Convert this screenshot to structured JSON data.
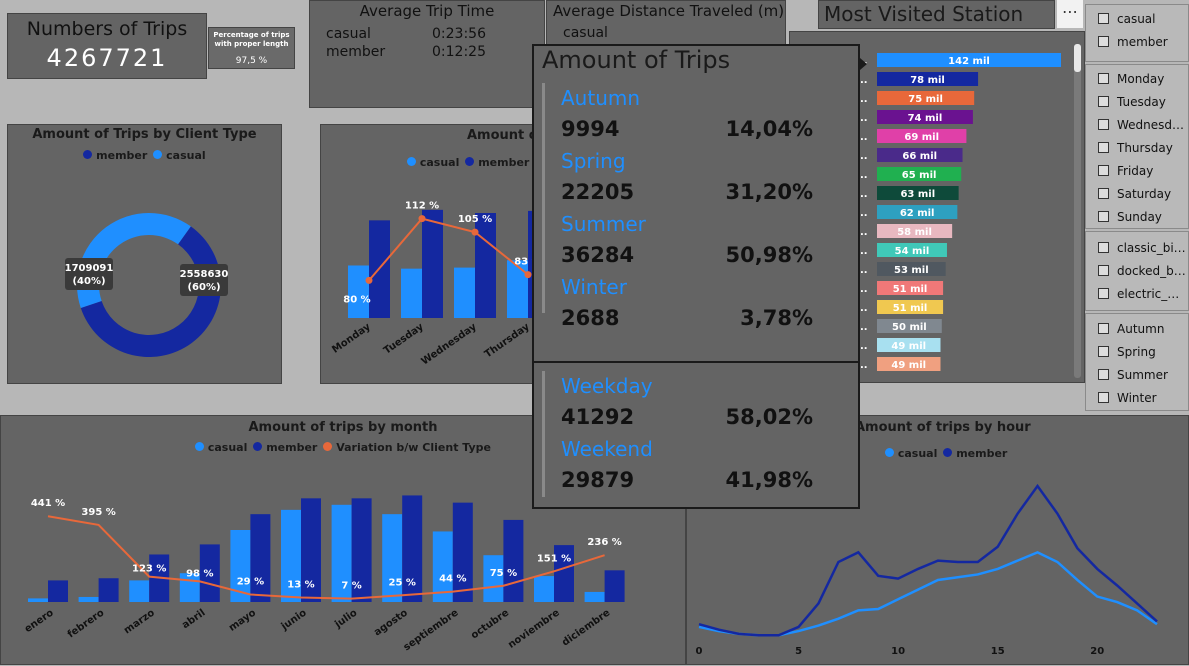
{
  "kpis": {
    "trips_title": "Numbers of Trips",
    "trips_value": "4267721",
    "pct_title": "Percentage of trips with proper length",
    "pct_value": "97,5 %",
    "avg_time_title": "Average Trip Time",
    "avg_time_rows": [
      {
        "label": "casual",
        "value": "0:23:56"
      },
      {
        "label": "member",
        "value": "0:12:25"
      }
    ],
    "avg_dist_title": "Average Distance Traveled (m)",
    "avg_dist_first_label": "casual"
  },
  "client_type": {
    "title": "Amount of Trips by Client Type",
    "legend": [
      {
        "name": "member",
        "color": "#1428a0"
      },
      {
        "name": "casual",
        "color": "#1f8fff"
      }
    ],
    "chart_data": {
      "type": "pie",
      "slices": [
        {
          "name": "member",
          "value": 2558630,
          "label": "2558630",
          "pct": "(60%)"
        },
        {
          "name": "casual",
          "value": 1709091,
          "label": "1709091",
          "pct": "(40%)"
        }
      ]
    }
  },
  "weekday_chart": {
    "title": "Amount o",
    "legend": [
      {
        "name": "casual",
        "color": "#1f8fff"
      },
      {
        "name": "member",
        "color": "#1428a0"
      }
    ],
    "chart_data": {
      "type": "bar",
      "categories": [
        "Monday",
        "Tuesday",
        "Wednesday",
        "Thursday"
      ],
      "series": [
        {
          "name": "casual",
          "values": [
            50,
            47,
            48,
            55
          ]
        },
        {
          "name": "member",
          "values": [
            93,
            103,
            100,
            102
          ]
        }
      ],
      "line": {
        "values": [
          80,
          112,
          105,
          83
        ],
        "labels": [
          "80 %",
          "112 %",
          "105 %",
          "83 %"
        ]
      }
    }
  },
  "station": {
    "title": "Most Visited Station",
    "chart_data": {
      "type": "bar",
      "values": [
        142,
        78,
        75,
        74,
        69,
        66,
        65,
        63,
        62,
        58,
        54,
        53,
        51,
        51,
        50,
        49,
        49
      ],
      "labels": [
        "142 mil",
        "78 mil",
        "75 mil",
        "74 mil",
        "69 mil",
        "66 mil",
        "65 mil",
        "63 mil",
        "62 mil",
        "58 mil",
        "54 mil",
        "53 mil",
        "51 mil",
        "51 mil",
        "50 mil",
        "49 mil",
        "49 mil"
      ],
      "colors": [
        "#1f8fff",
        "#1428a0",
        "#e8683a",
        "#6a1290",
        "#e040a8",
        "#4a2a8a",
        "#20b050",
        "#0e4a3a",
        "#2ea0c0",
        "#e8b8c0",
        "#40c8b8",
        "#505860",
        "#f07878",
        "#f0c850",
        "#808890",
        "#a8e0f0",
        "#f0a080"
      ]
    }
  },
  "slicers": {
    "client": [
      "casual",
      "member"
    ],
    "days": [
      "Monday",
      "Tuesday",
      "Wednesd…",
      "Thursday",
      "Friday",
      "Saturday",
      "Sunday"
    ],
    "bike": [
      "classic_bi…",
      "docked_b…",
      "electric_…"
    ],
    "season": [
      "Autumn",
      "Spring",
      "Summer",
      "Winter"
    ]
  },
  "tooltip": {
    "title": "Amount of Trips",
    "seasons": [
      {
        "name": "Autumn",
        "count": "9994",
        "pct": "14,04%"
      },
      {
        "name": "Spring",
        "count": "22205",
        "pct": "31,20%"
      },
      {
        "name": "Summer",
        "count": "36284",
        "pct": "50,98%"
      },
      {
        "name": "Winter",
        "count": "2688",
        "pct": "3,78%"
      }
    ],
    "daytypes": [
      {
        "name": "Weekday",
        "count": "41292",
        "pct": "58,02%"
      },
      {
        "name": "Weekend",
        "count": "29879",
        "pct": "41,98%"
      }
    ]
  },
  "month_chart": {
    "title": "Amount of trips by month",
    "legend": [
      {
        "name": "casual",
        "color": "#1f8fff"
      },
      {
        "name": "member",
        "color": "#1428a0"
      },
      {
        "name": "Variation b/w Client Type",
        "color": "#e8683a"
      }
    ],
    "chart_data": {
      "type": "bar",
      "categories": [
        "enero",
        "febrero",
        "marzo",
        "abril",
        "mayo",
        "junio",
        "julio",
        "agosto",
        "septiembre",
        "octubre",
        "noviembre",
        "diciembre"
      ],
      "series": [
        {
          "name": "casual",
          "values": [
            5,
            7,
            30,
            40,
            100,
            128,
            135,
            122,
            98,
            65,
            36,
            14
          ]
        },
        {
          "name": "member",
          "values": [
            30,
            33,
            66,
            80,
            122,
            144,
            144,
            148,
            138,
            114,
            79,
            44
          ]
        }
      ],
      "line": {
        "values": [
          441,
          395,
          123,
          98,
          29,
          13,
          7,
          25,
          44,
          75,
          151,
          236
        ],
        "labels": [
          "441 %",
          "395 %",
          "123 %",
          "98 %",
          "29 %",
          "13 %",
          "7 %",
          "25 %",
          "44 %",
          "75 %",
          "151 %",
          "236 %"
        ]
      }
    }
  },
  "hour_chart": {
    "title": "Amount of trips by hour",
    "legend": [
      {
        "name": "casual",
        "color": "#1f8fff"
      },
      {
        "name": "member",
        "color": "#1428a0"
      }
    ],
    "chart_data": {
      "type": "line",
      "x": [
        0,
        1,
        2,
        3,
        4,
        5,
        6,
        7,
        8,
        9,
        10,
        11,
        12,
        13,
        14,
        15,
        16,
        17,
        18,
        19,
        20,
        21,
        22,
        23
      ],
      "x_ticks": [
        "0",
        "5",
        "10",
        "15",
        "20"
      ],
      "series": [
        {
          "name": "casual",
          "values": [
            8,
            5,
            3,
            2,
            2,
            5,
            9,
            14,
            20,
            21,
            28,
            35,
            42,
            44,
            46,
            50,
            56,
            62,
            55,
            42,
            30,
            26,
            20,
            10
          ]
        },
        {
          "name": "member",
          "values": [
            10,
            6,
            3,
            2,
            2,
            8,
            25,
            55,
            62,
            45,
            43,
            50,
            56,
            55,
            55,
            66,
            90,
            110,
            90,
            65,
            50,
            38,
            25,
            12
          ]
        }
      ]
    }
  }
}
